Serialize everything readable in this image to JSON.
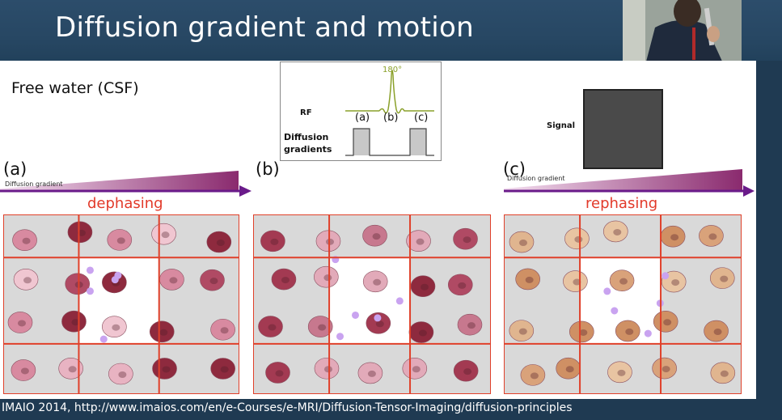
{
  "slide": {
    "title": "Diffusion gradient and motion",
    "subtitle": "Free water (CSF)",
    "citation": "IMAIO 2014, http://www.imaios.com/en/e-Courses/e-MRI/Diffusion-Tensor-Imaging/diffusion-principles"
  },
  "sequence": {
    "pulse_label": "180°",
    "rf_label": "RF",
    "time_labels": [
      "(a)",
      "(b)",
      "(c)"
    ],
    "gradients_label_line1": "Diffusion",
    "gradients_label_line2": "gradients"
  },
  "signal": {
    "label": "Signal"
  },
  "panels": {
    "a": {
      "label": "(a)",
      "gradient_label": "Diffusion gradient",
      "phase_label": "dephasing"
    },
    "b": {
      "label": "(b)"
    },
    "c": {
      "label": "(c)",
      "gradient_label": "Diffusion gradient",
      "phase_label": "rephasing"
    }
  },
  "colors": {
    "grid_line": "#e0402a",
    "cell_outer": "#d9d9d9",
    "cell_center": "#ffffff",
    "free_water": "#c9a3f0",
    "gradient_purple": "#6a1b8a",
    "phase_text": "#e23a2a",
    "rephased_cell": "#d79a6e"
  }
}
